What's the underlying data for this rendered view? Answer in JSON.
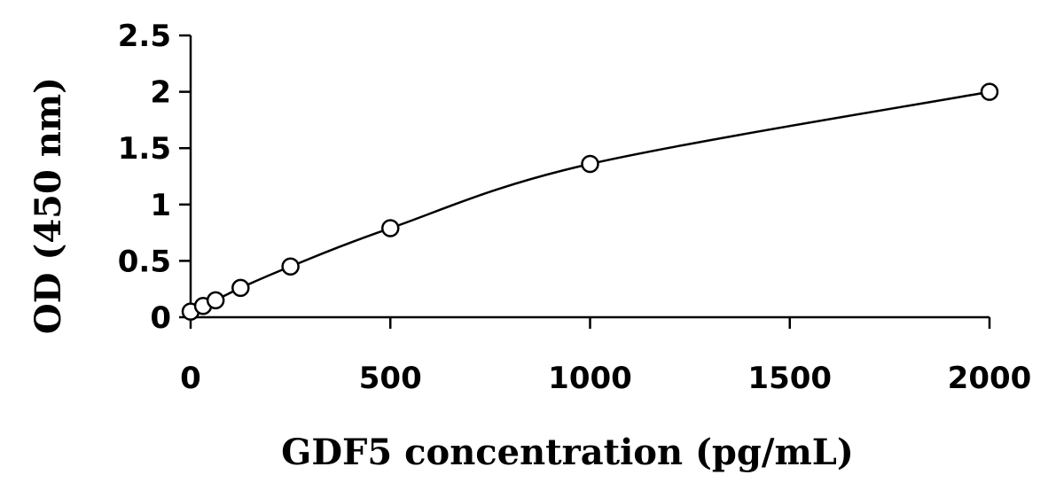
{
  "chart_data": {
    "type": "scatter",
    "title": "",
    "xlabel": "GDF5 concentration (pg/mL)",
    "ylabel": "OD (450 nm)",
    "xlim": [
      0,
      2000
    ],
    "ylim": [
      0,
      2.5
    ],
    "x_ticks": [
      0,
      500,
      1000,
      1500,
      2000
    ],
    "y_ticks": [
      0,
      0.5,
      1,
      1.5,
      2,
      2.5
    ],
    "x_tick_labels": [
      "0",
      "500",
      "1000",
      "1500",
      "2000"
    ],
    "y_tick_labels": [
      "0",
      "0.5",
      "1",
      "1.5",
      "2",
      "2.5"
    ],
    "grid": false,
    "legend": "none",
    "series": [
      {
        "marker": "open-circle",
        "color": "#000000",
        "fit_line": "smooth-curve",
        "x": [
          0,
          31.25,
          62.5,
          125,
          250,
          500,
          1000,
          2000
        ],
        "y": [
          0.05,
          0.1,
          0.15,
          0.26,
          0.45,
          0.79,
          1.36,
          2.0
        ]
      }
    ]
  }
}
